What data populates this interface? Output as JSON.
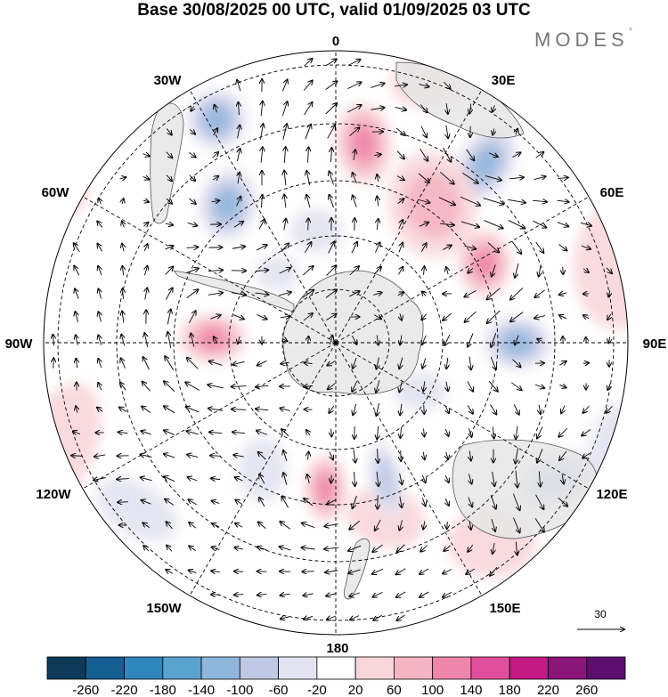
{
  "title": "Base 30/08/2025 00 UTC, valid 01/09/2025 03 UTC",
  "brand": {
    "name": "MODES",
    "mark": "°"
  },
  "map": {
    "projection": "south-polar-stereographic",
    "longitude_labels": [
      "0",
      "30E",
      "60E",
      "90E",
      "120E",
      "150E",
      "180",
      "150W",
      "120W",
      "90W",
      "60W",
      "30W"
    ],
    "reference_vector": {
      "label": "30"
    }
  },
  "colorbar": {
    "ticks": [
      "-260",
      "-220",
      "-180",
      "-140",
      "-100",
      "-60",
      "-20",
      "20",
      "60",
      "100",
      "140",
      "180",
      "220",
      "260"
    ],
    "colors": [
      "#0d3a57",
      "#145e92",
      "#2f86bd",
      "#5aa3cf",
      "#8fb6dc",
      "#bfc9e5",
      "#e3e3f1",
      "#ffffff",
      "#f8d6d9",
      "#f5b5c2",
      "#ee85aa",
      "#e0509a",
      "#c31a84",
      "#8c1579",
      "#5c0f6e"
    ]
  },
  "anomalies": [
    {
      "lon": 8,
      "colat": 62,
      "value": 120,
      "rx": 32,
      "ry": 46,
      "rot": -5
    },
    {
      "lon": 40,
      "colat": 72,
      "value": -120,
      "rx": 30,
      "ry": 46,
      "rot": 30
    },
    {
      "lon": 35,
      "colat": 52,
      "value": 80,
      "rx": 50,
      "ry": 60,
      "rot": -10
    },
    {
      "lon": 62,
      "colat": 52,
      "value": 150,
      "rx": 30,
      "ry": 38,
      "rot": 0
    },
    {
      "lon": 90,
      "colat": 56,
      "value": -150,
      "rx": 38,
      "ry": 30,
      "rot": 0
    },
    {
      "lon": 122,
      "colat": 80,
      "value": -140,
      "rx": 48,
      "ry": 30,
      "rot": -20
    },
    {
      "lon": 142,
      "colat": 78,
      "value": 60,
      "rx": 50,
      "ry": 40,
      "rot": 0
    },
    {
      "lon": 164,
      "colat": 56,
      "value": 60,
      "rx": 45,
      "ry": 34,
      "rot": 15
    },
    {
      "lon": -176,
      "colat": 45,
      "value": 140,
      "rx": 24,
      "ry": 38,
      "rot": 0
    },
    {
      "lon": 160,
      "colat": 45,
      "value": -80,
      "rx": 18,
      "ry": 44,
      "rot": -10
    },
    {
      "lon": -150,
      "colat": 45,
      "value": -60,
      "rx": 28,
      "ry": 36,
      "rot": 0
    },
    {
      "lon": -88,
      "colat": 38,
      "value": 150,
      "rx": 38,
      "ry": 28,
      "rot": 0
    },
    {
      "lon": -38,
      "colat": 54,
      "value": -120,
      "rx": 32,
      "ry": 40,
      "rot": 10
    },
    {
      "lon": -28,
      "colat": 78,
      "value": -120,
      "rx": 34,
      "ry": 34,
      "rot": 0
    },
    {
      "lon": -60,
      "colat": 95,
      "value": 60,
      "rx": 22,
      "ry": 30,
      "rot": 0
    },
    {
      "lon": -86,
      "colat": 105,
      "value": -60,
      "rx": 24,
      "ry": 36,
      "rot": 0
    },
    {
      "lon": -110,
      "colat": 90,
      "value": 60,
      "rx": 40,
      "ry": 70,
      "rot": 20
    },
    {
      "lon": 75,
      "colat": 90,
      "value": 60,
      "rx": 50,
      "ry": 70,
      "rot": 0
    },
    {
      "lon": 110,
      "colat": 95,
      "value": -60,
      "rx": 40,
      "ry": 50,
      "rot": 0
    },
    {
      "lon": -130,
      "colat": 80,
      "value": -60,
      "rx": 50,
      "ry": 30,
      "rot": 30
    },
    {
      "lon": 20,
      "colat": 85,
      "value": 60,
      "rx": 45,
      "ry": 28,
      "rot": 0
    },
    {
      "lon": -10,
      "colat": 35,
      "value": -60,
      "rx": 30,
      "ry": 25,
      "rot": 0
    },
    {
      "lon": 120,
      "colat": 30,
      "value": -60,
      "rx": 30,
      "ry": 22,
      "rot": 0
    },
    {
      "lon": -40,
      "colat": 28,
      "value": -60,
      "rx": 24,
      "ry": 20,
      "rot": 0
    }
  ]
}
